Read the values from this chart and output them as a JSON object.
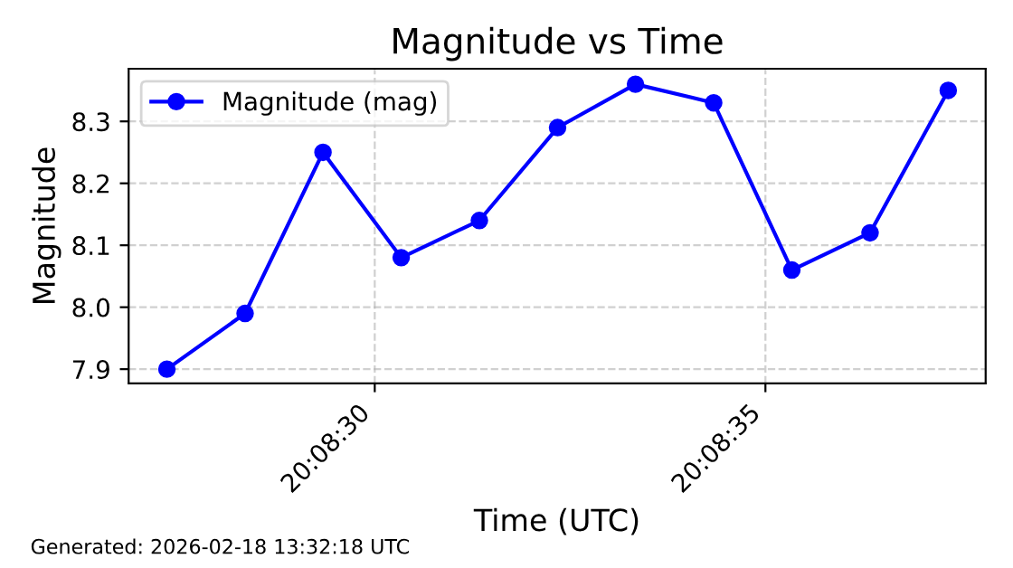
{
  "chart_data": {
    "type": "line",
    "title": "Magnitude vs Time",
    "xlabel": "Time (UTC)",
    "ylabel": "Magnitude",
    "x": [
      20.140928,
      20.141206,
      20.141483,
      20.141761,
      20.142039,
      20.142317,
      20.142594,
      20.142872,
      20.14315,
      20.143428,
      20.143706
    ],
    "series": [
      {
        "name": "Magnitude (mag)",
        "color": "#0000ff",
        "values": [
          7.9,
          7.99,
          8.25,
          8.08,
          8.14,
          8.29,
          8.36,
          8.33,
          8.06,
          8.12,
          8.35
        ]
      }
    ],
    "xlim": [
      20.140792,
      20.143839
    ],
    "xticks": [
      {
        "value": 20.141667,
        "label": "20:08:30"
      },
      {
        "value": 20.143056,
        "label": "20:08:35"
      }
    ],
    "ylim": [
      7.877,
      8.385
    ],
    "yticks": [
      7.9,
      {
        "value": 8.0,
        "label": "8.0"
      },
      8.1,
      8.2,
      8.3
    ],
    "grid": true,
    "legend": "top left",
    "marker": "circle",
    "line_style": "solid",
    "annotations": [
      "Generated: 2026-02-18 13:32:18 UTC"
    ]
  }
}
